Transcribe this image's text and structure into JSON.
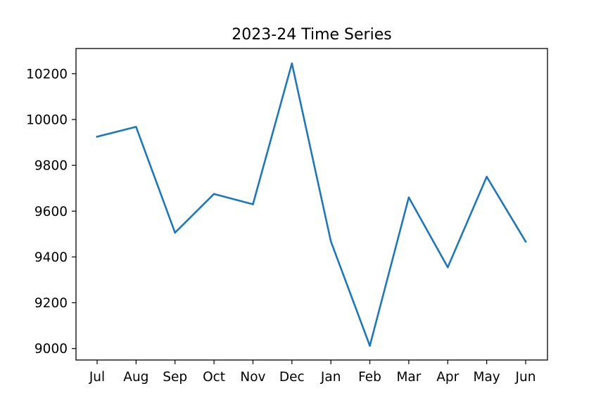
{
  "chart_data": {
    "type": "line",
    "title": "2023-24 Time Series",
    "xlabel": "",
    "ylabel": "",
    "categories": [
      "Jul",
      "Aug",
      "Sep",
      "Oct",
      "Nov",
      "Dec",
      "Jan",
      "Feb",
      "Mar",
      "Apr",
      "May",
      "Jun"
    ],
    "series": [
      {
        "values": [
          9925,
          9968,
          9506,
          9675,
          9630,
          10245,
          9468,
          9012,
          9660,
          9355,
          9750,
          9467
        ],
        "color": "#1f77b4"
      }
    ],
    "ylim": [
      8950,
      10310
    ],
    "yticks": [
      9000,
      9200,
      9400,
      9600,
      9800,
      10000,
      10200
    ],
    "ytick_labels": [
      "9000",
      "9200",
      "9400",
      "9600",
      "9800",
      "10000",
      "10200"
    ],
    "grid": false,
    "legend": "none"
  }
}
